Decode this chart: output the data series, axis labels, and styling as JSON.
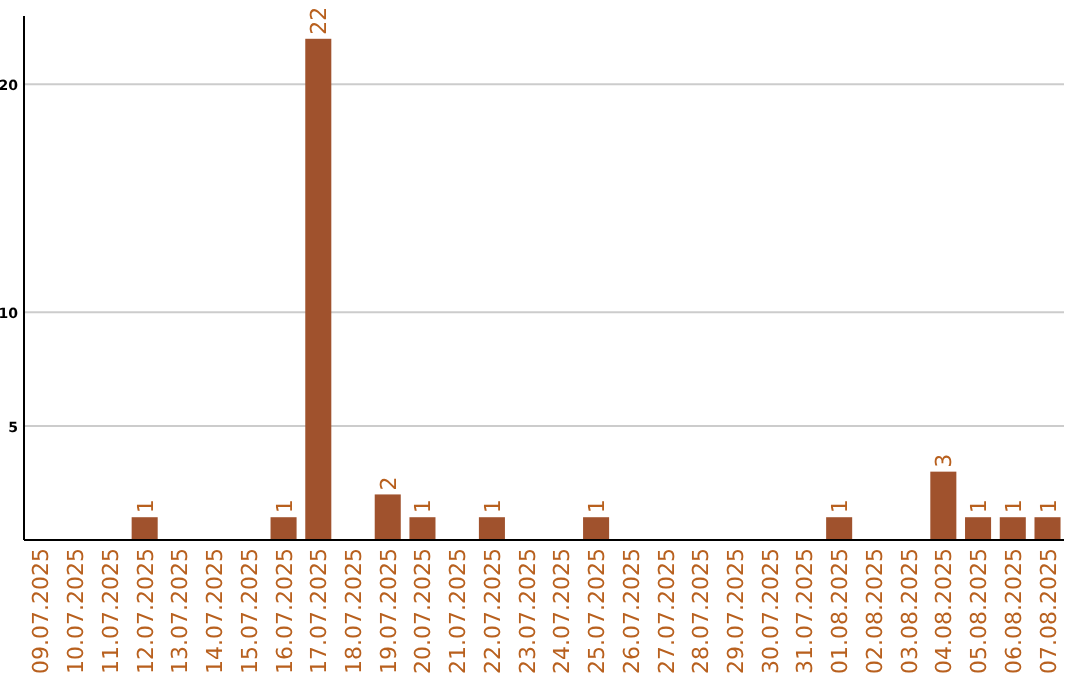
{
  "chart_data": {
    "type": "bar",
    "categories": [
      "09.07.2025",
      "10.07.2025",
      "11.07.2025",
      "12.07.2025",
      "13.07.2025",
      "14.07.2025",
      "15.07.2025",
      "16.07.2025",
      "17.07.2025",
      "18.07.2025",
      "19.07.2025",
      "20.07.2025",
      "21.07.2025",
      "22.07.2025",
      "23.07.2025",
      "24.07.2025",
      "25.07.2025",
      "26.07.2025",
      "27.07.2025",
      "28.07.2025",
      "29.07.2025",
      "30.07.2025",
      "31.07.2025",
      "01.08.2025",
      "02.08.2025",
      "03.08.2025",
      "04.08.2025",
      "05.08.2025",
      "06.08.2025",
      "07.08.2025"
    ],
    "values": [
      0,
      0,
      0,
      1,
      0,
      0,
      0,
      1,
      22,
      0,
      2,
      1,
      0,
      1,
      0,
      0,
      1,
      0,
      0,
      0,
      0,
      0,
      0,
      1,
      0,
      0,
      3,
      1,
      1,
      1
    ],
    "value_labels": [
      null,
      null,
      null,
      "1",
      null,
      null,
      null,
      "1",
      "22",
      null,
      "2",
      "1",
      null,
      "1",
      null,
      null,
      "1",
      null,
      null,
      null,
      null,
      null,
      null,
      "1",
      null,
      null,
      "3",
      "1",
      "1",
      "1"
    ],
    "color": "#a0522d",
    "ylim": [
      0,
      23
    ],
    "yticks": [
      5,
      10,
      20
    ],
    "grid": "y"
  }
}
